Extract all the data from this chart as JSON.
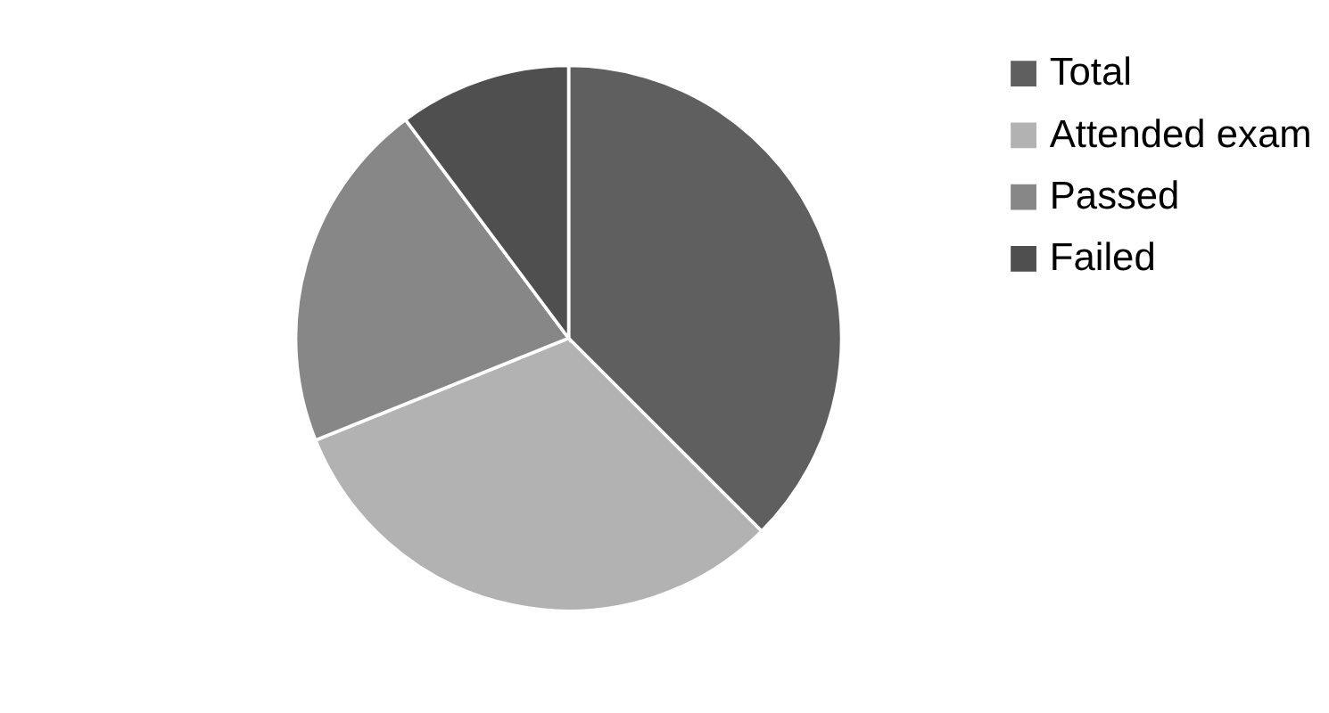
{
  "chart_data": {
    "type": "pie",
    "categories": [
      "Total",
      "Attended exam",
      "Passed",
      "Failed"
    ],
    "values": [
      37.5,
      31.4,
      20.9,
      10.2
    ],
    "colors": [
      "#5f5f5f",
      "#b2b2b2",
      "#878787",
      "#4f4f4f"
    ],
    "legend": "right"
  }
}
